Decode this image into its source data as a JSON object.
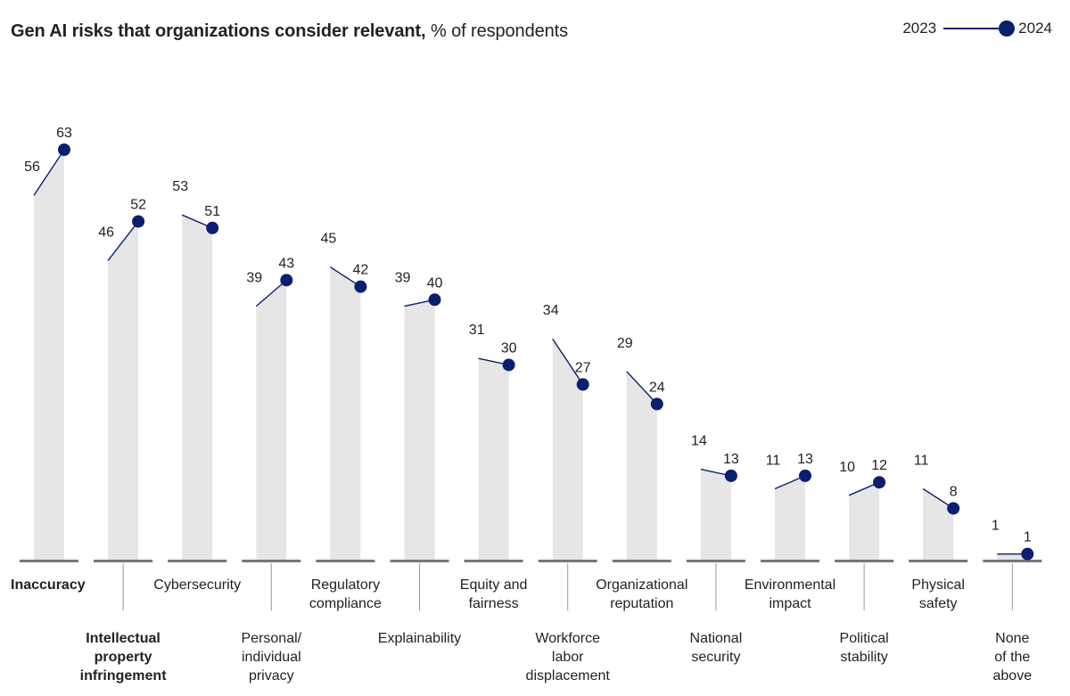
{
  "title_bold": "Gen AI risks that organizations consider relevant,",
  "title_rest": " % of respondents",
  "chart_data": {
    "type": "bar",
    "title": "Gen AI risks that organizations consider relevant, % of respondents",
    "categories": [
      [
        "Inaccuracy"
      ],
      [
        "Intellectual",
        "property",
        "infringement"
      ],
      [
        "Cybersecurity"
      ],
      [
        "Personal/",
        "individual",
        "privacy"
      ],
      [
        "Regulatory",
        "compliance"
      ],
      [
        "Explainability"
      ],
      [
        "Equity and",
        "fairness"
      ],
      [
        "Workforce",
        "labor",
        "displacement"
      ],
      [
        "Organizational",
        "reputation"
      ],
      [
        "National",
        "security"
      ],
      [
        "Environmental",
        "impact"
      ],
      [
        "Political",
        "stability"
      ],
      [
        "Physical",
        "safety"
      ],
      [
        "None",
        "of the",
        "above"
      ]
    ],
    "bold_categories": [
      0,
      1
    ],
    "series": [
      {
        "name": "2023",
        "values": [
          56,
          46,
          53,
          39,
          45,
          39,
          31,
          34,
          29,
          14,
          11,
          10,
          11,
          1
        ]
      },
      {
        "name": "2024",
        "values": [
          63,
          52,
          51,
          43,
          42,
          40,
          30,
          27,
          24,
          13,
          13,
          12,
          8,
          1
        ]
      }
    ],
    "ylim": [
      0,
      63
    ],
    "legend": "top-right",
    "colors": {
      "bar": "#e6e6e6",
      "line": "#0b1f6e",
      "dot": "#0b1f6e",
      "baseline": "#777777"
    }
  }
}
